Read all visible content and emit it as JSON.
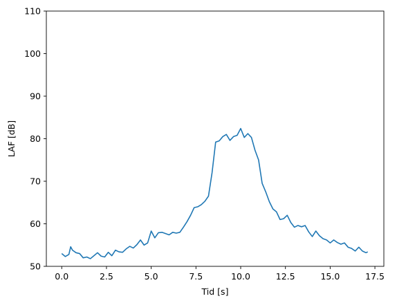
{
  "chart_data": {
    "type": "line",
    "title": "",
    "xlabel": "Tid [s]",
    "ylabel": "LAF [dB]",
    "xlim": [
      -0.86,
      18.0
    ],
    "ylim": [
      50,
      110
    ],
    "xticks": [
      0.0,
      2.5,
      5.0,
      7.5,
      10.0,
      12.5,
      15.0,
      17.5
    ],
    "xtick_labels": [
      "0.0",
      "2.5",
      "5.0",
      "7.5",
      "10.0",
      "12.5",
      "15.0",
      "17.5"
    ],
    "yticks": [
      50,
      60,
      70,
      80,
      90,
      100,
      110
    ],
    "ytick_labels": [
      "50",
      "60",
      "70",
      "80",
      "90",
      "100",
      "110"
    ],
    "grid": false,
    "legend": "none",
    "line_color": "#1f77b4",
    "series": [
      {
        "x": [
          0.0,
          0.2,
          0.4,
          0.5,
          0.6,
          0.8,
          1.0,
          1.2,
          1.4,
          1.6,
          1.8,
          2.0,
          2.2,
          2.4,
          2.6,
          2.8,
          3.0,
          3.2,
          3.4,
          3.6,
          3.8,
          4.0,
          4.2,
          4.4,
          4.6,
          4.8,
          5.0,
          5.2,
          5.4,
          5.6,
          5.8,
          6.0,
          6.2,
          6.4,
          6.6,
          6.8,
          7.0,
          7.2,
          7.4,
          7.6,
          7.8,
          8.0,
          8.2,
          8.4,
          8.6,
          8.8,
          9.0,
          9.2,
          9.4,
          9.6,
          9.8,
          10.0,
          10.2,
          10.4,
          10.6,
          10.8,
          11.0,
          11.2,
          11.4,
          11.6,
          11.8,
          12.0,
          12.2,
          12.4,
          12.6,
          12.8,
          13.0,
          13.2,
          13.4,
          13.6,
          13.8,
          14.0,
          14.2,
          14.4,
          14.6,
          14.8,
          15.0,
          15.2,
          15.4,
          15.6,
          15.8,
          16.0,
          16.2,
          16.4,
          16.6,
          16.8,
          17.0,
          17.1
        ],
        "y": [
          53.0,
          52.3,
          52.8,
          54.6,
          53.8,
          53.2,
          53.0,
          52.0,
          52.2,
          51.8,
          52.5,
          53.2,
          52.4,
          52.2,
          53.3,
          52.5,
          53.8,
          53.4,
          53.3,
          54.1,
          54.7,
          54.3,
          55.1,
          56.2,
          55.0,
          55.5,
          58.3,
          56.7,
          57.9,
          58.0,
          57.7,
          57.4,
          58.0,
          57.8,
          58.0,
          59.2,
          60.5,
          62.0,
          63.8,
          64.0,
          64.5,
          65.3,
          66.5,
          72.0,
          79.2,
          79.5,
          80.5,
          81.0,
          79.6,
          80.5,
          80.8,
          82.4,
          80.3,
          81.2,
          80.3,
          77.3,
          75.0,
          69.5,
          67.5,
          65.2,
          63.5,
          62.8,
          61.0,
          61.2,
          62.0,
          60.3,
          59.2,
          59.6,
          59.3,
          59.6,
          58.1,
          57.0,
          58.3,
          57.2,
          56.5,
          56.2,
          55.5,
          56.2,
          55.6,
          55.2,
          55.5,
          54.5,
          54.2,
          53.6,
          54.5,
          53.6,
          53.2,
          53.4
        ]
      }
    ]
  }
}
